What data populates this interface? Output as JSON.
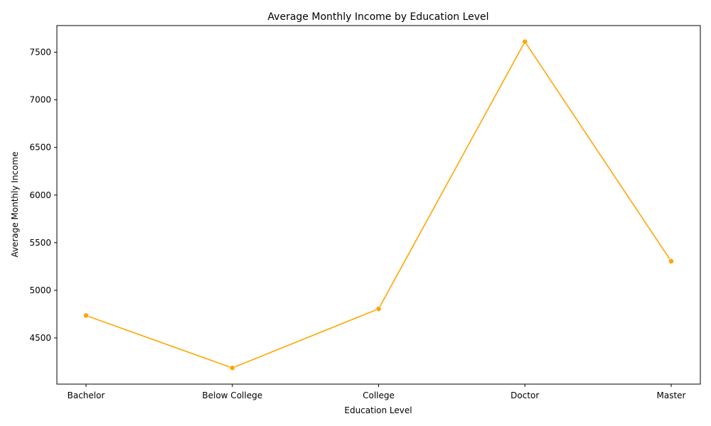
{
  "chart_data": {
    "type": "line",
    "title": "Average Monthly Income by Education Level",
    "xlabel": "Education Level",
    "ylabel": "Average Monthly Income",
    "categories": [
      "Bachelor",
      "Below College",
      "College",
      "Doctor",
      "Master"
    ],
    "series": [
      {
        "values": [
          4735,
          4185,
          4805,
          7610,
          5305
        ],
        "color": "#ffa500"
      }
    ],
    "yticks": [
      4500,
      5000,
      5500,
      6000,
      6500,
      7000,
      7500
    ],
    "ylim": [
      4015,
      7780
    ],
    "grid": false,
    "legend": "none",
    "marker": "circle"
  }
}
